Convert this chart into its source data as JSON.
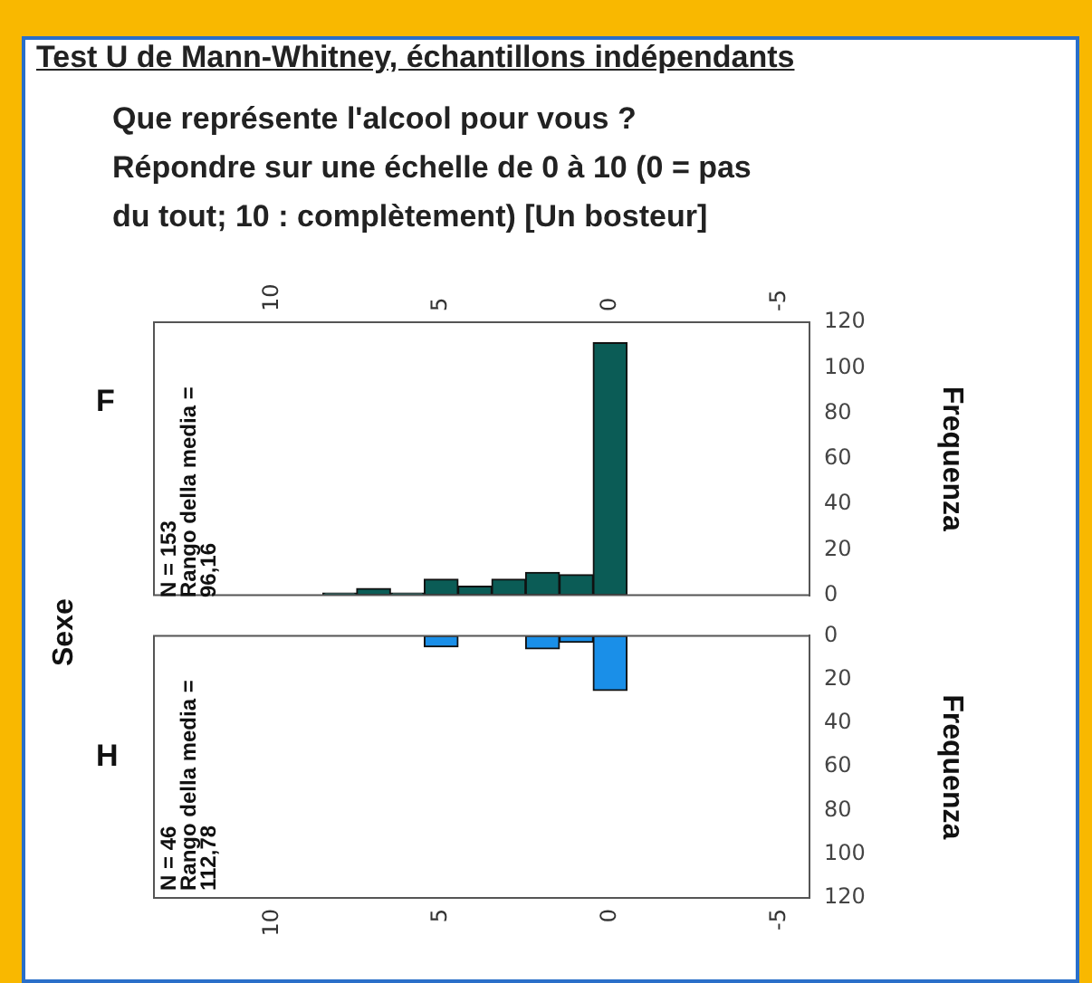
{
  "chart_data": [
    {
      "type": "histogram",
      "title": "Test U de Mann-Whitney, échantillons indépendants",
      "subtitle": "Que représente l'alcool pour vous ?\nRépondre sur une échelle de 0 à 10 (0 = pas\ndu tout; 10 : complètement) [Un bosteur]",
      "ylabel": "Frequenza",
      "annotations": [
        "F",
        "Sexe",
        "N = 153",
        "Rango della media =",
        "96,16"
      ],
      "bins": [
        -0.5,
        0.5,
        1.5,
        2.5,
        3.5,
        4.5,
        5.5,
        6.5,
        7.5,
        8.5
      ],
      "values": [
        111,
        9,
        10,
        7,
        4,
        7,
        1,
        3,
        1
      ],
      "color": "#0b5c56",
      "xlim": [
        13.5,
        -5.9
      ],
      "xticks": [
        10,
        5,
        0,
        -5
      ],
      "ylim": [
        0,
        120
      ],
      "yticks": [
        0,
        20,
        40,
        60,
        80,
        100,
        120
      ],
      "grid": false,
      "legend": false
    },
    {
      "type": "histogram",
      "ylabel": "Frequenza",
      "annotations": [
        "H",
        "N = 46",
        "Rango della media =",
        "112,78"
      ],
      "bins": [
        -0.5,
        0.5,
        1.5,
        2.5,
        3.5,
        4.5,
        5.5,
        6.5,
        7.5,
        8.5
      ],
      "values": [
        25,
        3,
        6,
        0,
        0,
        5,
        0,
        0,
        0
      ],
      "color": "#1a8fe8",
      "xlim": [
        13.5,
        -5.9
      ],
      "xticks": [
        10,
        5,
        0,
        -5
      ],
      "ylim": [
        120,
        0
      ],
      "yticks": [
        0,
        20,
        40,
        60,
        80,
        100,
        120
      ],
      "grid": false,
      "legend": false
    }
  ]
}
